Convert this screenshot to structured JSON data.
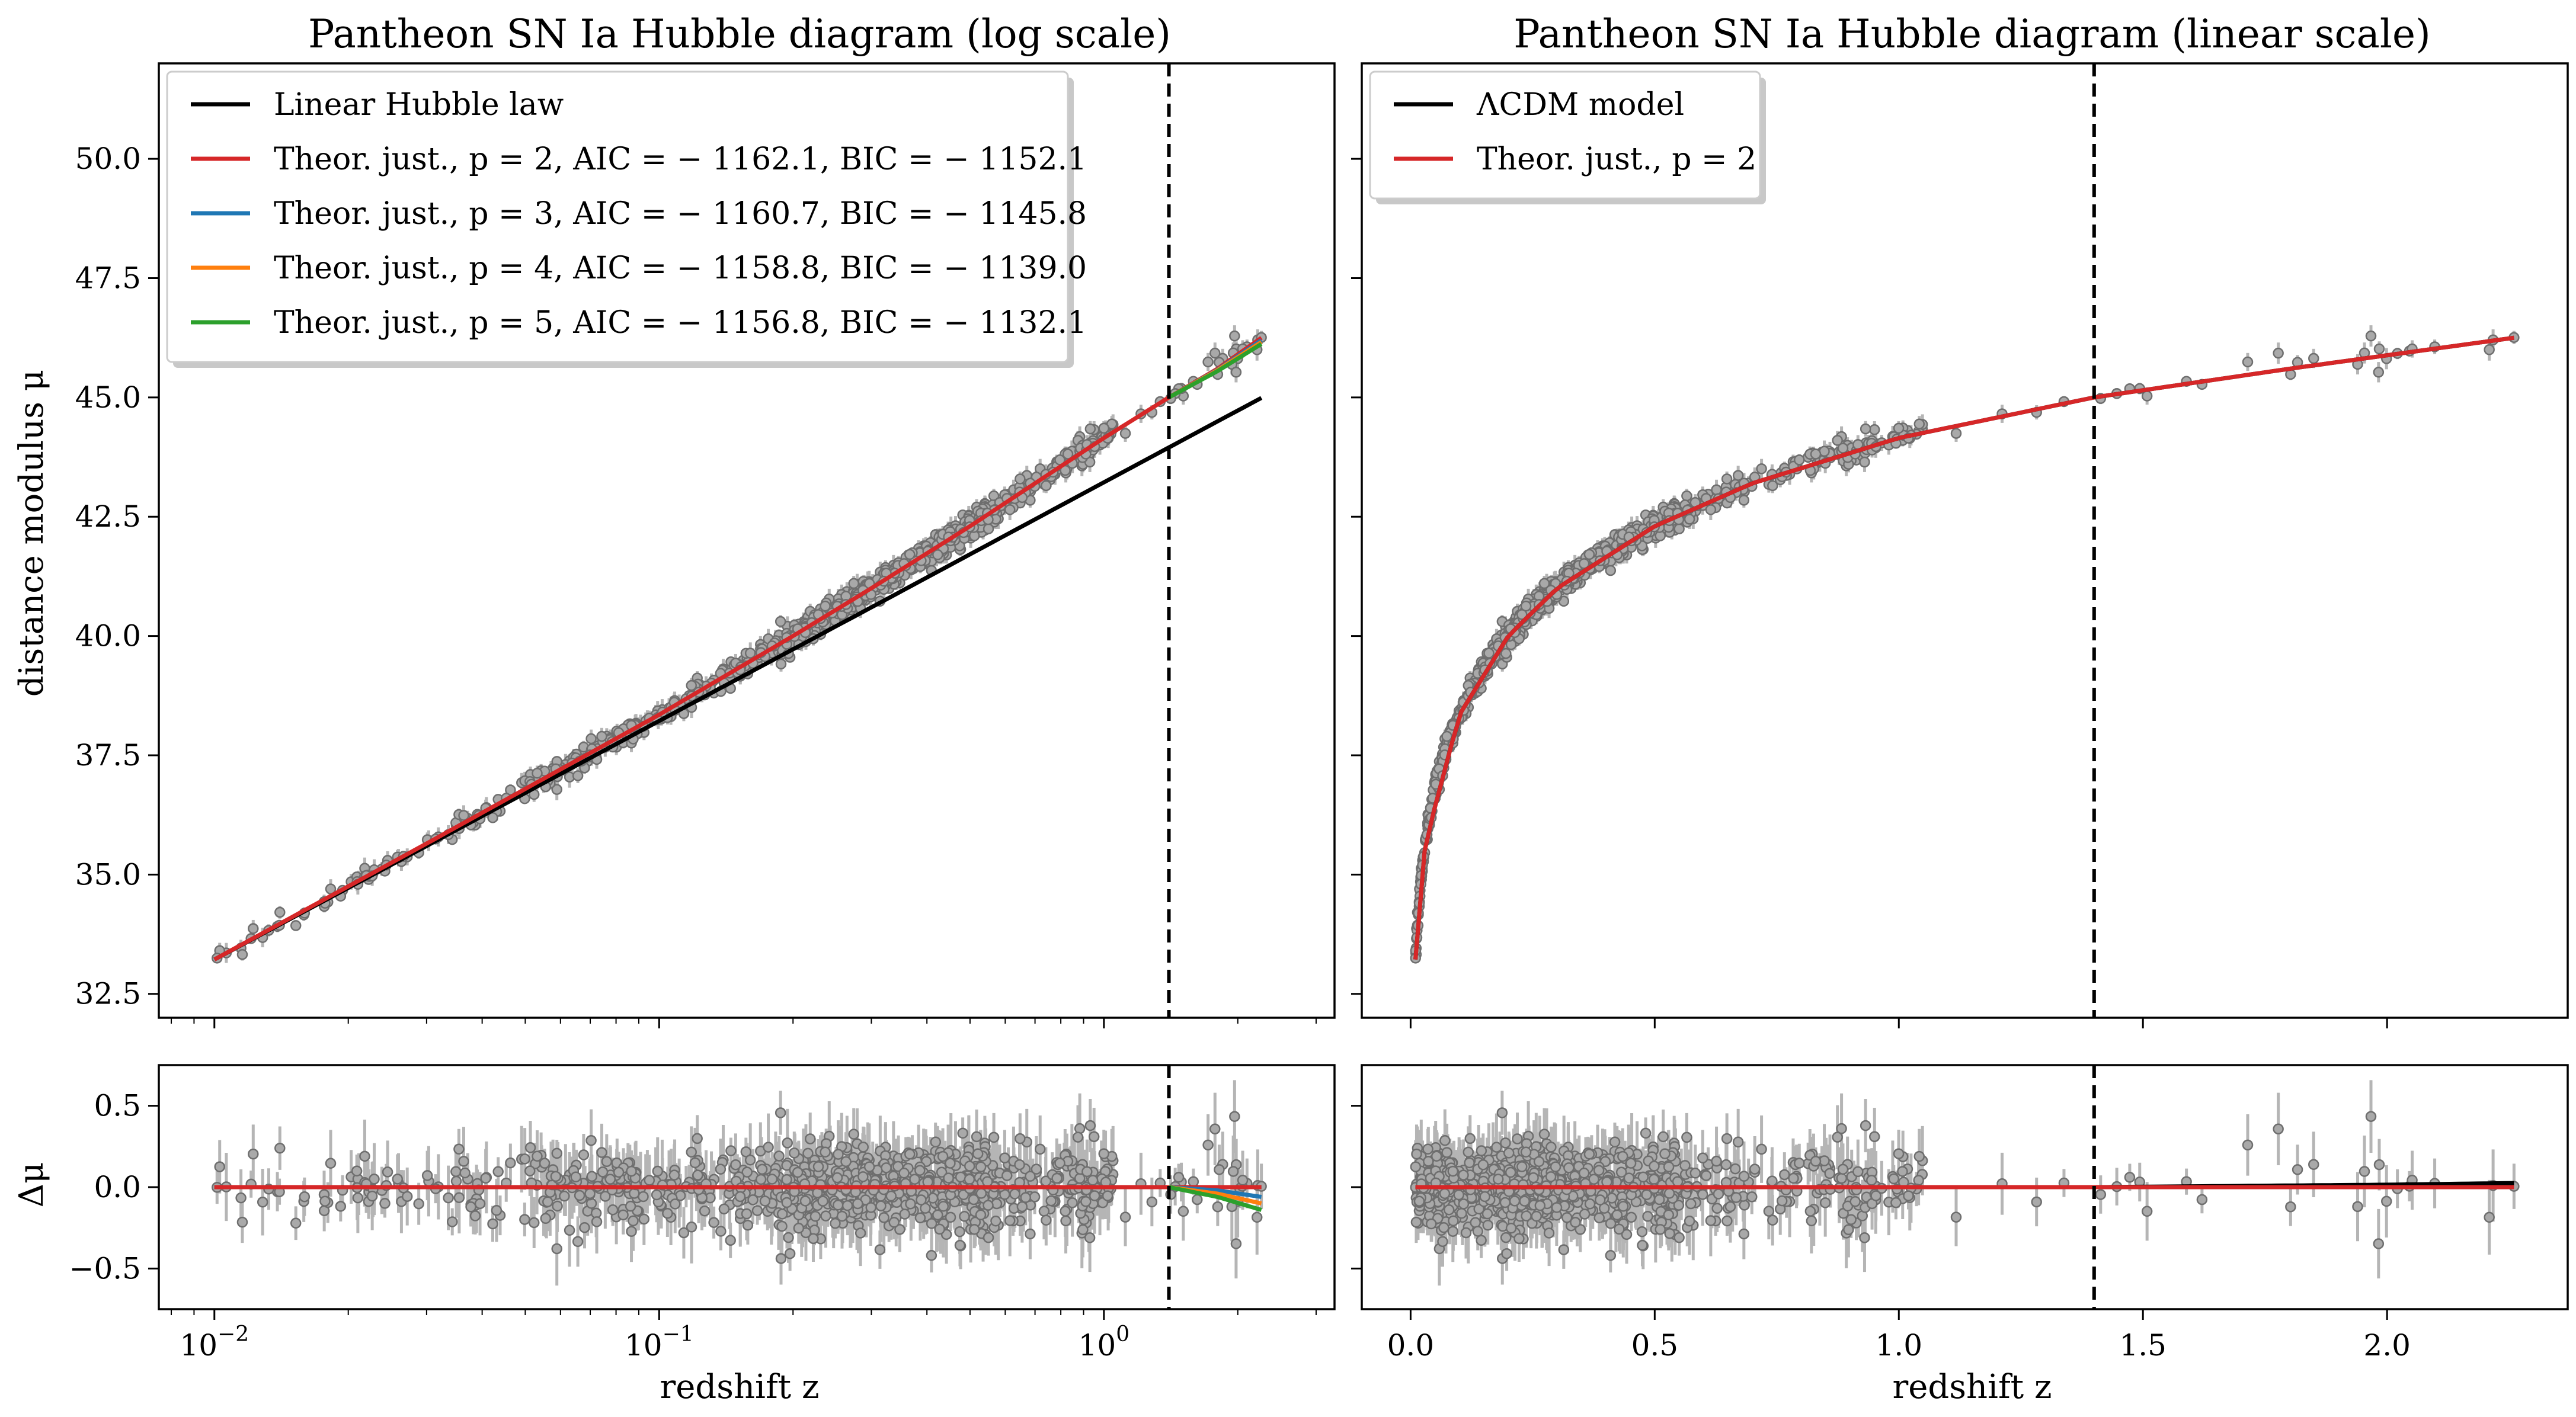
{
  "chart_data": [
    {
      "panel": "top-left",
      "type": "scatter",
      "title": "Pantheon SN Ia Hubble diagram (log scale)",
      "xlabel": "",
      "ylabel": "distance modulus μ",
      "xscale": "log",
      "xlim": [
        0.0075,
        3.3
      ],
      "ylim": [
        32.0,
        52.0
      ],
      "xticks": [
        0.01,
        0.1,
        1
      ],
      "yticks": [
        32.5,
        35.0,
        37.5,
        40.0,
        42.5,
        45.0,
        47.5,
        50.0
      ],
      "ytick_labels": [
        "32.5",
        "35.0",
        "37.5",
        "40.0",
        "42.5",
        "45.0",
        "47.5",
        "50.0"
      ],
      "vline_z": 1.4,
      "legend_position": "top-left",
      "legend": [
        {
          "label": "Linear Hubble law",
          "color": "#000000"
        },
        {
          "label": "Theor. just., p = 2, AIC = − 1162.1, BIC = − 1152.1",
          "color": "#d62728"
        },
        {
          "label": "Theor. just., p = 3, AIC = − 1160.7, BIC = − 1145.8",
          "color": "#1f77b4"
        },
        {
          "label": "Theor. just., p = 4, AIC = − 1158.8, BIC = − 1139.0",
          "color": "#ff7f0e"
        },
        {
          "label": "Theor. just., p = 5, AIC = − 1156.8, BIC = − 1132.1",
          "color": "#2ca02c"
        }
      ],
      "series": [
        {
          "name": "Linear Hubble law",
          "color": "#000000",
          "x": [
            0.01,
            0.03,
            0.1,
            0.3,
            1.0,
            2.26
          ],
          "y": [
            33.22,
            35.6,
            38.22,
            40.6,
            43.22,
            44.99
          ]
        },
        {
          "name": "Theor. just., p = 2",
          "color": "#d62728",
          "x": [
            0.01,
            0.03,
            0.1,
            0.2,
            0.3,
            0.5,
            0.7,
            1.0,
            1.4,
            1.8,
            2.26
          ],
          "y": [
            33.22,
            35.65,
            38.35,
            40.0,
            41.0,
            42.3,
            43.2,
            44.15,
            45.0,
            45.6,
            46.25
          ]
        },
        {
          "name": "Theor. just., p = 3",
          "color": "#1f77b4",
          "x": [
            1.4,
            1.8,
            2.26
          ],
          "y": [
            45.0,
            45.58,
            46.2
          ]
        },
        {
          "name": "Theor. just., p = 4",
          "color": "#ff7f0e",
          "x": [
            1.4,
            1.8,
            2.26
          ],
          "y": [
            45.0,
            45.57,
            46.16
          ]
        },
        {
          "name": "Theor. just., p = 5",
          "color": "#2ca02c",
          "x": [
            1.4,
            1.8,
            2.26
          ],
          "y": [
            45.0,
            45.55,
            46.12
          ]
        }
      ],
      "scatter_points": {
        "description": "Pantheon SNe Ia with error bars",
        "n": 1048,
        "z_range": [
          0.01,
          2.26
        ],
        "mu_range": [
          33.1,
          46.3
        ]
      }
    },
    {
      "panel": "top-right",
      "type": "scatter",
      "title": "Pantheon SN Ia Hubble diagram (linear scale)",
      "xlabel": "",
      "ylabel": "",
      "xscale": "linear",
      "xlim": [
        -0.1,
        2.37
      ],
      "ylim": [
        32.0,
        52.0
      ],
      "xticks": [
        0.0,
        0.5,
        1.0,
        1.5,
        2.0
      ],
      "vline_z": 1.4,
      "legend_position": "top-left",
      "legend": [
        {
          "label": "ΛCDM model",
          "color": "#000000"
        },
        {
          "label": "Theor. just., p = 2",
          "color": "#d62728"
        }
      ],
      "series": [
        {
          "name": "ΛCDM model",
          "color": "#000000",
          "x": [
            0.01,
            0.03,
            0.1,
            0.2,
            0.3,
            0.5,
            0.7,
            1.0,
            1.4,
            1.8,
            2.26
          ],
          "y": [
            33.22,
            35.65,
            38.35,
            40.0,
            41.0,
            42.3,
            43.2,
            44.15,
            45.0,
            45.6,
            46.25
          ]
        },
        {
          "name": "Theor. just., p = 2",
          "color": "#d62728",
          "x": [
            0.01,
            0.03,
            0.1,
            0.2,
            0.3,
            0.5,
            0.7,
            1.0,
            1.4,
            1.8,
            2.26
          ],
          "y": [
            33.22,
            35.65,
            38.35,
            40.0,
            41.0,
            42.3,
            43.2,
            44.15,
            45.0,
            45.6,
            46.25
          ]
        }
      ]
    },
    {
      "panel": "bottom-left",
      "type": "scatter",
      "title": "",
      "xlabel": "redshift z",
      "ylabel": "Δμ",
      "xscale": "log",
      "xlim": [
        0.0075,
        3.3
      ],
      "ylim": [
        -0.75,
        0.75
      ],
      "xticks": [
        0.01,
        0.1,
        1
      ],
      "xtick_labels": [
        "10−2",
        "10−1",
        "100"
      ],
      "yticks": [
        -0.5,
        0.0,
        0.5
      ],
      "ytick_labels": [
        "−0.5",
        "0.0",
        "0.5"
      ],
      "vline_z": 1.4,
      "series": [
        {
          "name": "Linear Hubble law residual",
          "color": "#000000",
          "x": [
            0.01,
            2.26
          ],
          "y": [
            0.0,
            0.0
          ]
        },
        {
          "name": "Theor. just., p = 2",
          "color": "#d62728",
          "x": [
            0.01,
            1.0,
            2.26
          ],
          "y": [
            0.0,
            0.0,
            0.0
          ]
        },
        {
          "name": "Theor. just., p = 3",
          "color": "#1f77b4",
          "x": [
            1.4,
            1.8,
            2.26
          ],
          "y": [
            0.0,
            -0.02,
            -0.06
          ]
        },
        {
          "name": "Theor. just., p = 4",
          "color": "#ff7f0e",
          "x": [
            1.4,
            1.8,
            2.26
          ],
          "y": [
            0.0,
            -0.04,
            -0.1
          ]
        },
        {
          "name": "Theor. just., p = 5",
          "color": "#2ca02c",
          "x": [
            1.4,
            1.8,
            2.26
          ],
          "y": [
            0.0,
            -0.06,
            -0.14
          ]
        }
      ]
    },
    {
      "panel": "bottom-right",
      "type": "scatter",
      "title": "",
      "xlabel": "redshift z",
      "ylabel": "",
      "xscale": "linear",
      "xlim": [
        -0.1,
        2.37
      ],
      "ylim": [
        -0.75,
        0.75
      ],
      "xticks": [
        0.0,
        0.5,
        1.0,
        1.5,
        2.0
      ],
      "xtick_labels": [
        "0.0",
        "0.5",
        "1.0",
        "1.5",
        "2.0"
      ],
      "vline_z": 1.4,
      "series": [
        {
          "name": "ΛCDM model residual",
          "color": "#000000",
          "x": [
            0.01,
            1.4,
            2.0,
            2.26
          ],
          "y": [
            0.0,
            0.0,
            0.015,
            0.025
          ]
        },
        {
          "name": "Theor. just., p = 2",
          "color": "#d62728",
          "x": [
            0.01,
            2.26
          ],
          "y": [
            0.0,
            0.0
          ]
        }
      ]
    }
  ]
}
